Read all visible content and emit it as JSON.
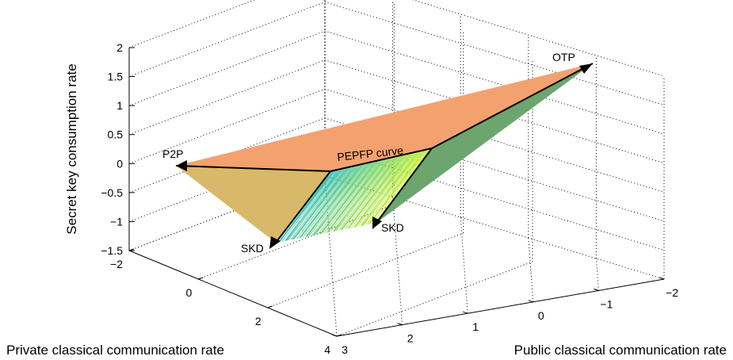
{
  "chart_data": {
    "type": "surface3d",
    "zlabel": "Secret key consumption rate",
    "xlabel": "Private classical communication rate",
    "ylabel": "Public classical communication rate",
    "z_ticks": [
      "2",
      "1.5",
      "1",
      "0.5",
      "0",
      "−0.5",
      "−1",
      "−1.5"
    ],
    "x_ticks": [
      "−2",
      "0",
      "2",
      "4"
    ],
    "y_ticks": [
      "3",
      "2",
      "1",
      "0",
      "−1",
      "−2"
    ],
    "zlim": [
      -1.5,
      2
    ],
    "xlim": [
      -2,
      4
    ],
    "ylim": [
      -2,
      3
    ],
    "grid": true,
    "annotations": {
      "otp": "OTP",
      "p2p": "P2P",
      "skd_left": "SKD",
      "skd_right": "SKD",
      "curve": "PEPFP curve"
    },
    "colors": {
      "top_face": "#f4a170",
      "left_face": "#d8b96a",
      "right_face": "#6ca56e",
      "hatch_start": "#33bdb5",
      "hatch_end": "#c2ed2a"
    }
  }
}
